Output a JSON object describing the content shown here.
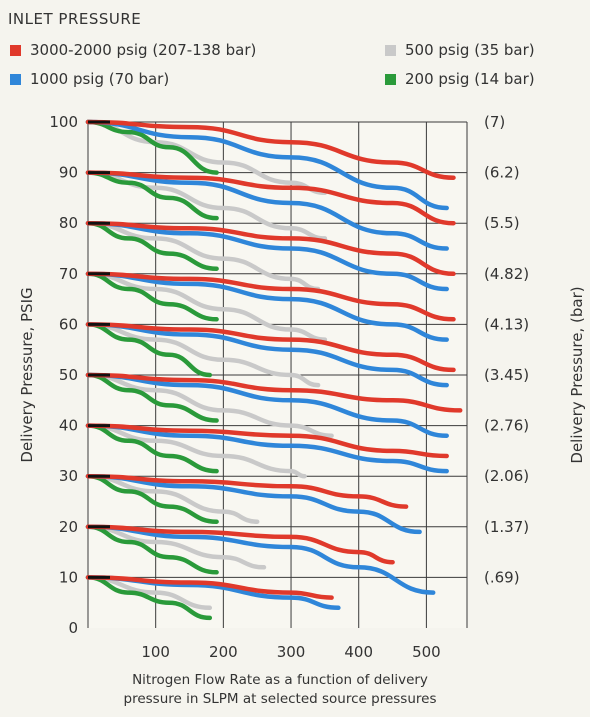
{
  "legend": {
    "title": "INLET  PRESSURE",
    "items": [
      {
        "label": "3000-2000 psig (207-138 bar)",
        "color": "#e0392b"
      },
      {
        "label": "500 psig (35 bar)",
        "color": "#c9c9c9"
      },
      {
        "label": "1000 psig (70 bar)",
        "color": "#2f86d9"
      },
      {
        "label": "200 psig (14 bar)",
        "color": "#2a9a3a"
      }
    ]
  },
  "caption": {
    "line1": "Nitrogen Flow Rate as a function of delivery",
    "line2": "pressure in SLPM at selected source pressures"
  },
  "chart_data": {
    "type": "line",
    "title": "",
    "xlabel": "",
    "ylabel": "Delivery Pressure, PSIG",
    "ylabel_right": "Delivery Pressure, (bar)",
    "xlim": [
      0,
      560
    ],
    "ylim": [
      0,
      100
    ],
    "x_ticks": [
      100,
      200,
      300,
      400,
      500
    ],
    "y_ticks": [
      0,
      10,
      20,
      30,
      40,
      50,
      60,
      70,
      80,
      90,
      100
    ],
    "right_ticks": [
      {
        "y": 100,
        "label": "(7)"
      },
      {
        "y": 90,
        "label": "(6.2)"
      },
      {
        "y": 80,
        "label": "(5.5)"
      },
      {
        "y": 70,
        "label": "(4.82)"
      },
      {
        "y": 60,
        "label": "(4.13)"
      },
      {
        "y": 50,
        "label": "(3.45)"
      },
      {
        "y": 40,
        "label": "(2.76)"
      },
      {
        "y": 30,
        "label": "(2.06)"
      },
      {
        "y": 20,
        "label": "(1.37)"
      },
      {
        "y": 10,
        "label": "(.69)"
      }
    ],
    "grid": true,
    "groups": [
      {
        "setpoint": 100,
        "curves": [
          {
            "inlet": "3000-2000 psig (207-138 bar)",
            "x": [
              0,
              150,
              300,
              450,
              540
            ],
            "y": [
              100,
              99,
              96,
              92,
              89
            ]
          },
          {
            "inlet": "1000 psig (70 bar)",
            "x": [
              0,
              150,
              300,
              450,
              530
            ],
            "y": [
              100,
              97,
              93,
              87,
              83
            ]
          },
          {
            "inlet": "500 psig (35 bar)",
            "x": [
              0,
              100,
              200,
              300,
              350
            ],
            "y": [
              100,
              96,
              92,
              88,
              86
            ]
          },
          {
            "inlet": "200 psig (14 bar)",
            "x": [
              0,
              60,
              120,
              190
            ],
            "y": [
              100,
              98,
              95,
              90
            ]
          }
        ]
      },
      {
        "setpoint": 90,
        "curves": [
          {
            "inlet": "3000-2000 psig (207-138 bar)",
            "x": [
              0,
              150,
              300,
              450,
              540
            ],
            "y": [
              90,
              89,
              87,
              84,
              80
            ]
          },
          {
            "inlet": "1000 psig (70 bar)",
            "x": [
              0,
              150,
              300,
              450,
              530
            ],
            "y": [
              90,
              88,
              84,
              78,
              75
            ]
          },
          {
            "inlet": "500 psig (35 bar)",
            "x": [
              0,
              100,
              200,
              300,
              350
            ],
            "y": [
              90,
              87,
              83,
              79,
              77
            ]
          },
          {
            "inlet": "200 psig (14 bar)",
            "x": [
              0,
              60,
              120,
              190
            ],
            "y": [
              90,
              88,
              85,
              81
            ]
          }
        ]
      },
      {
        "setpoint": 80,
        "curves": [
          {
            "inlet": "3000-2000 psig (207-138 bar)",
            "x": [
              0,
              150,
              300,
              450,
              540
            ],
            "y": [
              80,
              79,
              77,
              74,
              70
            ]
          },
          {
            "inlet": "1000 psig (70 bar)",
            "x": [
              0,
              150,
              300,
              450,
              530
            ],
            "y": [
              80,
              78,
              75,
              70,
              67
            ]
          },
          {
            "inlet": "500 psig (35 bar)",
            "x": [
              0,
              100,
              200,
              300,
              340
            ],
            "y": [
              80,
              77,
              73,
              69,
              67
            ]
          },
          {
            "inlet": "200 psig (14 bar)",
            "x": [
              0,
              60,
              120,
              190
            ],
            "y": [
              80,
              77,
              74,
              71
            ]
          }
        ]
      },
      {
        "setpoint": 70,
        "curves": [
          {
            "inlet": "3000-2000 psig (207-138 bar)",
            "x": [
              0,
              150,
              300,
              450,
              540
            ],
            "y": [
              70,
              69,
              67,
              64,
              61
            ]
          },
          {
            "inlet": "1000 psig (70 bar)",
            "x": [
              0,
              150,
              300,
              450,
              530
            ],
            "y": [
              70,
              68,
              65,
              60,
              57
            ]
          },
          {
            "inlet": "500 psig (35 bar)",
            "x": [
              0,
              100,
              200,
              300,
              350
            ],
            "y": [
              70,
              67,
              63,
              59,
              57
            ]
          },
          {
            "inlet": "200 psig (14 bar)",
            "x": [
              0,
              60,
              120,
              190
            ],
            "y": [
              70,
              67,
              64,
              61
            ]
          }
        ]
      },
      {
        "setpoint": 60,
        "curves": [
          {
            "inlet": "3000-2000 psig (207-138 bar)",
            "x": [
              0,
              150,
              300,
              450,
              540
            ],
            "y": [
              60,
              59,
              57,
              54,
              51
            ]
          },
          {
            "inlet": "1000 psig (70 bar)",
            "x": [
              0,
              150,
              300,
              450,
              530
            ],
            "y": [
              60,
              58,
              55,
              51,
              48
            ]
          },
          {
            "inlet": "500 psig (35 bar)",
            "x": [
              0,
              100,
              200,
              300,
              340
            ],
            "y": [
              60,
              57,
              53,
              50,
              48
            ]
          },
          {
            "inlet": "200 psig (14 bar)",
            "x": [
              0,
              60,
              120,
              180
            ],
            "y": [
              60,
              57,
              54,
              50
            ]
          }
        ]
      },
      {
        "setpoint": 50,
        "curves": [
          {
            "inlet": "3000-2000 psig (207-138 bar)",
            "x": [
              0,
              150,
              300,
              450,
              550
            ],
            "y": [
              50,
              49,
              47,
              45,
              43
            ]
          },
          {
            "inlet": "1000 psig (70 bar)",
            "x": [
              0,
              150,
              300,
              450,
              530
            ],
            "y": [
              50,
              48,
              45,
              41,
              38
            ]
          },
          {
            "inlet": "500 psig (35 bar)",
            "x": [
              0,
              100,
              200,
              300,
              360
            ],
            "y": [
              50,
              47,
              43,
              40,
              38
            ]
          },
          {
            "inlet": "200 psig (14 bar)",
            "x": [
              0,
              60,
              120,
              190
            ],
            "y": [
              50,
              47,
              44,
              41
            ]
          }
        ]
      },
      {
        "setpoint": 40,
        "curves": [
          {
            "inlet": "3000-2000 psig (207-138 bar)",
            "x": [
              0,
              150,
              300,
              450,
              530
            ],
            "y": [
              40,
              39,
              38,
              35,
              34
            ]
          },
          {
            "inlet": "1000 psig (70 bar)",
            "x": [
              0,
              150,
              300,
              450,
              530
            ],
            "y": [
              40,
              38,
              36,
              33,
              31
            ]
          },
          {
            "inlet": "500 psig (35 bar)",
            "x": [
              0,
              100,
              200,
              300,
              320
            ],
            "y": [
              40,
              37,
              34,
              31,
              30
            ]
          },
          {
            "inlet": "200 psig (14 bar)",
            "x": [
              0,
              60,
              120,
              190
            ],
            "y": [
              40,
              37,
              34,
              31
            ]
          }
        ]
      },
      {
        "setpoint": 30,
        "curves": [
          {
            "inlet": "3000-2000 psig (207-138 bar)",
            "x": [
              0,
              150,
              300,
              400,
              470
            ],
            "y": [
              30,
              29,
              28,
              26,
              24
            ]
          },
          {
            "inlet": "1000 psig (70 bar)",
            "x": [
              0,
              150,
              300,
              400,
              490
            ],
            "y": [
              30,
              28,
              26,
              23,
              19
            ]
          },
          {
            "inlet": "500 psig (35 bar)",
            "x": [
              0,
              100,
              200,
              250
            ],
            "y": [
              30,
              27,
              23,
              21
            ]
          },
          {
            "inlet": "200 psig (14 bar)",
            "x": [
              0,
              60,
              120,
              190
            ],
            "y": [
              30,
              27,
              24,
              21
            ]
          }
        ]
      },
      {
        "setpoint": 20,
        "curves": [
          {
            "inlet": "3000-2000 psig (207-138 bar)",
            "x": [
              0,
              150,
              300,
              400,
              450
            ],
            "y": [
              20,
              19,
              18,
              15,
              13
            ]
          },
          {
            "inlet": "1000 psig (70 bar)",
            "x": [
              0,
              150,
              300,
              400,
              510
            ],
            "y": [
              20,
              18,
              16,
              12,
              7
            ]
          },
          {
            "inlet": "500 psig (35 bar)",
            "x": [
              0,
              100,
              200,
              260
            ],
            "y": [
              20,
              17,
              14,
              12
            ]
          },
          {
            "inlet": "200 psig (14 bar)",
            "x": [
              0,
              60,
              120,
              190
            ],
            "y": [
              20,
              17,
              14,
              11
            ]
          }
        ]
      },
      {
        "setpoint": 10,
        "curves": [
          {
            "inlet": "3000-2000 psig (207-138 bar)",
            "x": [
              0,
              150,
              300,
              360
            ],
            "y": [
              10,
              9,
              7,
              6
            ]
          },
          {
            "inlet": "1000 psig (70 bar)",
            "x": [
              0,
              150,
              300,
              370
            ],
            "y": [
              10,
              8.5,
              6,
              4
            ]
          },
          {
            "inlet": "500 psig (35 bar)",
            "x": [
              0,
              100,
              180
            ],
            "y": [
              10,
              7,
              4
            ]
          },
          {
            "inlet": "200 psig (14 bar)",
            "x": [
              0,
              60,
              120,
              180
            ],
            "y": [
              10,
              7,
              5,
              2
            ]
          }
        ]
      }
    ]
  }
}
